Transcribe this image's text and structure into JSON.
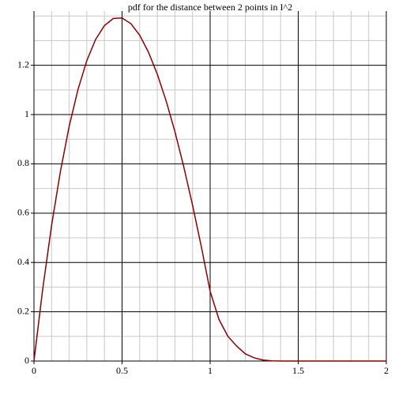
{
  "chart_data": {
    "type": "line",
    "title": "pdf for the distance between 2 points in I^2",
    "x": [
      0,
      0.05,
      0.1,
      0.15,
      0.2,
      0.25,
      0.3,
      0.35,
      0.4,
      0.45,
      0.5,
      0.55,
      0.6,
      0.65,
      0.7,
      0.75,
      0.8,
      0.85,
      0.9,
      0.95,
      1,
      1.05,
      1.1,
      1.15,
      1.2,
      1.25,
      1.3,
      1.35,
      1.4,
      1.45,
      1.5,
      1.55,
      1.6,
      1.65,
      1.7,
      1.75,
      1.8,
      1.85,
      1.9,
      1.95,
      2
    ],
    "values": [
      0,
      0.294,
      0.55,
      0.769,
      0.953,
      1.102,
      1.219,
      1.305,
      1.361,
      1.39,
      1.392,
      1.369,
      1.322,
      1.253,
      1.164,
      1.056,
      0.931,
      0.789,
      0.633,
      0.464,
      0.283,
      0.169,
      0.101,
      0.061,
      0.029,
      0.013,
      0.004,
      0.001,
      0,
      0,
      0,
      0,
      0,
      0,
      0,
      0,
      0,
      0,
      0,
      0,
      0
    ],
    "color": "#8b0000",
    "xlim": [
      0,
      2
    ],
    "ylim": [
      0,
      1.42
    ],
    "xticks": [
      0,
      0.5,
      1,
      1.5,
      2
    ],
    "yticks": [
      0,
      0.2,
      0.4,
      0.6,
      0.8,
      1,
      1.2
    ],
    "x_minor_ticks": [
      0.1,
      0.2,
      0.3,
      0.4,
      0.6,
      0.7,
      0.8,
      0.9,
      1.1,
      1.2,
      1.3,
      1.4,
      1.6,
      1.7,
      1.8,
      1.9
    ],
    "y_minor_ticks": [
      0.1,
      0.3,
      0.5,
      0.7,
      0.9,
      1.1,
      1.3,
      1.4
    ],
    "grid": true
  }
}
